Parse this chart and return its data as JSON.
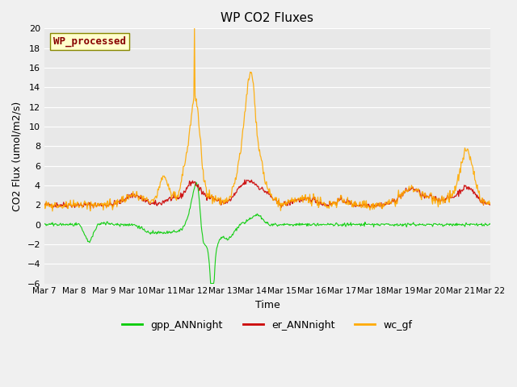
{
  "title": "WP CO2 Fluxes",
  "xlabel": "Time",
  "ylabel": "CO2 Flux (umol/m2/s)",
  "ylim": [
    -6,
    20
  ],
  "yticks": [
    -6,
    -4,
    -2,
    0,
    2,
    4,
    6,
    8,
    10,
    12,
    14,
    16,
    18,
    20
  ],
  "xtick_labels": [
    "Mar 7",
    "Mar 8",
    "Mar 9",
    "Mar 10",
    "Mar 11",
    "Mar 12",
    "Mar 13",
    "Mar 14",
    "Mar 15",
    "Mar 16",
    "Mar 17",
    "Mar 18",
    "Mar 19",
    "Mar 20",
    "Mar 21",
    "Mar 22"
  ],
  "n_days": 15,
  "points_per_day": 48,
  "gpp_color": "#00cc00",
  "er_color": "#cc0000",
  "wc_color": "#ffaa00",
  "plot_bg_color": "#e8e8e8",
  "fig_bg_color": "#f0f0f0",
  "annotation_text": "WP_processed",
  "annotation_bg": "#ffffcc",
  "annotation_fg": "#880000",
  "annotation_edge": "#888800",
  "legend_items": [
    "gpp_ANNnight",
    "er_ANNnight",
    "wc_gf"
  ],
  "legend_colors": [
    "#00cc00",
    "#cc0000",
    "#ffaa00"
  ]
}
